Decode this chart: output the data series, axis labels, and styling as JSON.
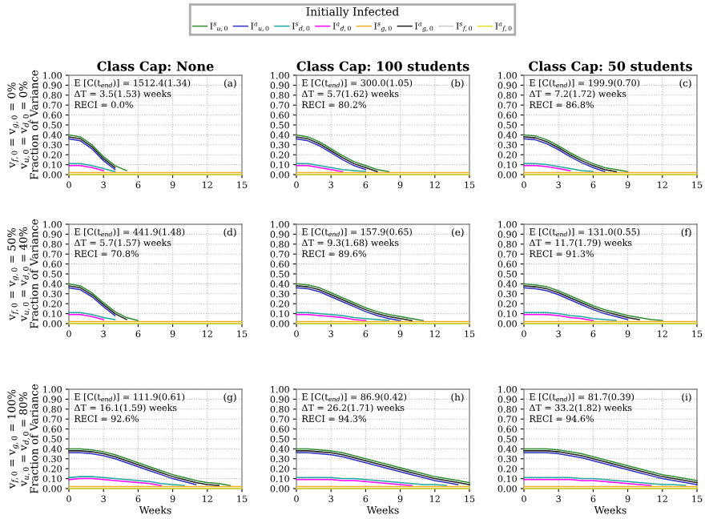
{
  "chart_data": [
    {
      "type": "line",
      "title": "Class Cap: None",
      "ylabel": "v$_{f,0}$ = v$_{g,0}$ = 0%\nv$_{u,0}$ = v$_{d,0}$ = 0%\nFraction of Variance",
      "legend": "top",
      "legend_title": "Initially Infected",
      "grid": true,
      "x": [
        0,
        1,
        2,
        3,
        4,
        5,
        6,
        7,
        8,
        9,
        10,
        11,
        12,
        13,
        14,
        15
      ],
      "xlim": [
        0,
        15
      ],
      "ylim": [
        0,
        1
      ],
      "xticks": [
        0,
        3,
        6,
        9,
        12,
        15
      ],
      "yticks": [
        {
          "value": 0,
          "label": "0.00"
        },
        {
          "value": 0.1,
          "label": "0.10"
        },
        {
          "value": 0.2,
          "label": "0.20"
        },
        {
          "value": 0.3,
          "label": "0.30"
        },
        {
          "value": 0.4,
          "label": "0.40"
        },
        {
          "value": 0.5,
          "label": "0.50"
        },
        {
          "value": 0.6,
          "label": "0.60"
        },
        {
          "value": 0.7,
          "label": "0.70"
        },
        {
          "value": 0.8,
          "label": "0.80"
        },
        {
          "value": 0.9,
          "label": "0.90"
        },
        {
          "value": 1,
          "label": "1.00"
        }
      ],
      "annotations": [
        "E [C(t$_{end}$)] = 1512.4(1.34)",
        "ΔT = 3.5(1.53) weeks",
        "RECI = 0.0%",
        "(a)"
      ],
      "series": [
        {
          "name": "I$^{s}$$_{u,0}$",
          "color": "#2e8b2e",
          "values": [
            0.4,
            0.38,
            0.3,
            0.18,
            0.09,
            0.04,
            null,
            null,
            null,
            null,
            null,
            null,
            null,
            null,
            null,
            null
          ]
        },
        {
          "name": "I$^{a}$$_{u,0}$",
          "color": "#3030c0",
          "values": [
            0.36,
            0.34,
            0.26,
            0.14,
            0.05,
            null,
            null,
            null,
            null,
            null,
            null,
            null,
            null,
            null,
            null,
            null
          ]
        },
        {
          "name": "I$^{s}$$_{d,0}$",
          "color": "#20a8a0",
          "values": [
            0.11,
            0.11,
            0.09,
            0.06,
            0.03,
            null,
            null,
            null,
            null,
            null,
            null,
            null,
            null,
            null,
            null,
            null
          ]
        },
        {
          "name": "I$^{a}$$_{d,0}$",
          "color": "#ff00ff",
          "values": [
            0.09,
            0.09,
            0.07,
            0.04,
            null,
            null,
            null,
            null,
            null,
            null,
            null,
            null,
            null,
            null,
            null,
            null
          ]
        },
        {
          "name": "I$^{s}$$_{g,0}$",
          "color": "#f0b020",
          "values": [
            0.02,
            0.02,
            0.02,
            0.02,
            0.02,
            0.02,
            0.02,
            0.02,
            0.02,
            0.02,
            0.02,
            0.02,
            0.02,
            0.02,
            0.02,
            0.02
          ]
        },
        {
          "name": "I$^{a}$$_{g,0}$",
          "color": "#222222",
          "values": [
            0.38,
            0.36,
            0.28,
            0.16,
            0.07,
            null,
            null,
            null,
            null,
            null,
            null,
            null,
            null,
            null,
            null,
            null
          ]
        },
        {
          "name": "I$^{s}$$_{f,0}$",
          "color": "#cccccc",
          "values": [
            null,
            null,
            null,
            null,
            null,
            null,
            null,
            null,
            null,
            null,
            null,
            null,
            null,
            null,
            null,
            null
          ]
        },
        {
          "name": "I$^{a}$$_{f,0}$",
          "color": "#e0e020",
          "values": [
            0,
            0,
            0,
            0,
            0,
            0,
            0,
            0,
            0,
            0,
            0,
            0,
            0,
            0,
            0,
            0
          ]
        }
      ]
    },
    {
      "type": "line",
      "title": "Class Cap: 100 students",
      "grid": true,
      "x": [
        0,
        1,
        2,
        3,
        4,
        5,
        6,
        7,
        8,
        9,
        10,
        11,
        12,
        13,
        14,
        15
      ],
      "xlim": [
        0,
        15
      ],
      "ylim": [
        0,
        1
      ],
      "xticks": [
        0,
        3,
        6,
        9,
        12,
        15
      ],
      "yticks": [
        {
          "value": 0,
          "label": "0.00"
        },
        {
          "value": 0.1,
          "label": "0.10"
        },
        {
          "value": 0.2,
          "label": "0.20"
        },
        {
          "value": 0.3,
          "label": "0.30"
        },
        {
          "value": 0.4,
          "label": "0.40"
        },
        {
          "value": 0.5,
          "label": "0.50"
        },
        {
          "value": 0.6,
          "label": "0.60"
        },
        {
          "value": 0.7,
          "label": "0.70"
        },
        {
          "value": 0.8,
          "label": "0.80"
        },
        {
          "value": 0.9,
          "label": "0.90"
        },
        {
          "value": 1,
          "label": "1.00"
        }
      ],
      "annotations": [
        "E [C(t$_{end}$)] = 300.0(1.05)",
        "ΔT = 5.7(1.62) weeks",
        "RECI = 80.2%",
        "(b)"
      ],
      "series": [
        {
          "color": "#2e8b2e",
          "values": [
            0.4,
            0.38,
            0.33,
            0.26,
            0.19,
            0.13,
            0.09,
            0.05,
            0.03,
            null,
            null,
            null,
            null,
            null,
            null,
            null
          ]
        },
        {
          "color": "#3030c0",
          "values": [
            0.36,
            0.34,
            0.29,
            0.22,
            0.15,
            0.09,
            0.05,
            null,
            null,
            null,
            null,
            null,
            null,
            null,
            null,
            null
          ]
        },
        {
          "color": "#20a8a0",
          "values": [
            0.11,
            0.11,
            0.09,
            0.07,
            0.05,
            0.04,
            0.03,
            null,
            null,
            null,
            null,
            null,
            null,
            null,
            null,
            null
          ]
        },
        {
          "color": "#ff00ff",
          "values": [
            0.09,
            0.09,
            0.07,
            0.05,
            0.03,
            null,
            null,
            null,
            null,
            null,
            null,
            null,
            null,
            null,
            null,
            null
          ]
        },
        {
          "color": "#f0b020",
          "values": [
            0.02,
            0.02,
            0.02,
            0.02,
            0.02,
            0.02,
            0.02,
            0.02,
            0.02,
            0.02,
            0.02,
            0.02,
            0.02,
            0.02,
            0.02,
            0.02
          ]
        },
        {
          "color": "#222222",
          "values": [
            0.38,
            0.36,
            0.31,
            0.24,
            0.17,
            0.11,
            0.07,
            0.03,
            null,
            null,
            null,
            null,
            null,
            null,
            null,
            null
          ]
        },
        {
          "color": "#cccccc",
          "values": [
            null,
            null,
            null,
            null,
            null,
            null,
            null,
            null,
            null,
            null,
            null,
            null,
            null,
            null,
            null,
            null
          ]
        },
        {
          "color": "#e0e020",
          "values": [
            0,
            0,
            0,
            0,
            0,
            0,
            0,
            0,
            0,
            0,
            0,
            0,
            0,
            0,
            0,
            0
          ]
        }
      ]
    },
    {
      "type": "line",
      "title": "Class Cap: 50 students",
      "grid": true,
      "x": [
        0,
        1,
        2,
        3,
        4,
        5,
        6,
        7,
        8,
        9,
        10,
        11,
        12,
        13,
        14,
        15
      ],
      "xlim": [
        0,
        15
      ],
      "ylim": [
        0,
        1
      ],
      "xticks": [
        0,
        3,
        6,
        9,
        12,
        15
      ],
      "yticks": [
        {
          "value": 0,
          "label": "0.00"
        },
        {
          "value": 0.1,
          "label": "0.10"
        },
        {
          "value": 0.2,
          "label": "0.20"
        },
        {
          "value": 0.3,
          "label": "0.30"
        },
        {
          "value": 0.4,
          "label": "0.40"
        },
        {
          "value": 0.5,
          "label": "0.50"
        },
        {
          "value": 0.6,
          "label": "0.60"
        },
        {
          "value": 0.7,
          "label": "0.70"
        },
        {
          "value": 0.8,
          "label": "0.80"
        },
        {
          "value": 0.9,
          "label": "0.90"
        },
        {
          "value": 1,
          "label": "1.00"
        }
      ],
      "annotations": [
        "E [C(t$_{end}$)] = 199.9(0.70)",
        "ΔT = 7.2(1.72) weeks",
        "RECI = 86.8%",
        "(c)"
      ],
      "series": [
        {
          "color": "#2e8b2e",
          "values": [
            0.4,
            0.39,
            0.35,
            0.29,
            0.22,
            0.16,
            0.11,
            0.07,
            0.05,
            0.03,
            null,
            null,
            null,
            null,
            null,
            null
          ]
        },
        {
          "color": "#3030c0",
          "values": [
            0.36,
            0.35,
            0.31,
            0.25,
            0.18,
            0.12,
            0.07,
            0.03,
            null,
            null,
            null,
            null,
            null,
            null,
            null,
            null
          ]
        },
        {
          "color": "#20a8a0",
          "values": [
            0.11,
            0.11,
            0.1,
            0.08,
            0.06,
            0.04,
            0.03,
            null,
            null,
            null,
            null,
            null,
            null,
            null,
            null,
            null
          ]
        },
        {
          "color": "#ff00ff",
          "values": [
            0.09,
            0.09,
            0.08,
            0.06,
            0.04,
            null,
            null,
            null,
            null,
            null,
            null,
            null,
            null,
            null,
            null,
            null
          ]
        },
        {
          "color": "#f0b020",
          "values": [
            0.02,
            0.02,
            0.02,
            0.02,
            0.02,
            0.02,
            0.02,
            0.02,
            0.02,
            0.02,
            0.02,
            0.02,
            0.02,
            0.02,
            0.02,
            0.02
          ]
        },
        {
          "color": "#222222",
          "values": [
            0.38,
            0.37,
            0.33,
            0.27,
            0.2,
            0.14,
            0.09,
            0.05,
            0.03,
            null,
            null,
            null,
            null,
            null,
            null,
            null
          ]
        },
        {
          "color": "#cccccc",
          "values": [
            null,
            null,
            null,
            null,
            null,
            null,
            null,
            null,
            null,
            null,
            null,
            null,
            null,
            null,
            null,
            null
          ]
        },
        {
          "color": "#e0e020",
          "values": [
            0,
            0,
            0,
            0,
            0,
            0,
            0,
            0,
            0,
            0,
            0,
            0,
            0,
            0,
            0,
            0
          ]
        }
      ]
    },
    {
      "type": "line",
      "ylabel": "v$_{f,0}$ = v$_{g,0}$ = 50%\nv$_{u,0}$ = v$_{d,0}$ = 40%\nFraction of Variance",
      "grid": true,
      "x": [
        0,
        1,
        2,
        3,
        4,
        5,
        6,
        7,
        8,
        9,
        10,
        11,
        12,
        13,
        14,
        15
      ],
      "xlim": [
        0,
        15
      ],
      "ylim": [
        0,
        1
      ],
      "xticks": [
        0,
        3,
        6,
        9,
        12,
        15
      ],
      "yticks": [
        {
          "value": 0,
          "label": "0.00"
        },
        {
          "value": 0.1,
          "label": "0.10"
        },
        {
          "value": 0.2,
          "label": "0.20"
        },
        {
          "value": 0.3,
          "label": "0.30"
        },
        {
          "value": 0.4,
          "label": "0.40"
        },
        {
          "value": 0.5,
          "label": "0.50"
        },
        {
          "value": 0.6,
          "label": "0.60"
        },
        {
          "value": 0.7,
          "label": "0.70"
        },
        {
          "value": 0.8,
          "label": "0.80"
        },
        {
          "value": 0.9,
          "label": "0.90"
        },
        {
          "value": 1,
          "label": "1.00"
        }
      ],
      "annotations": [
        "E [C(t$_{end}$)] = 441.9(1.48)",
        "ΔT = 5.7(1.57) weeks",
        "RECI = 70.8%",
        "(d)"
      ],
      "series": [
        {
          "color": "#2e8b2e",
          "values": [
            0.4,
            0.38,
            0.31,
            0.21,
            0.12,
            0.06,
            0.03,
            null,
            null,
            null,
            null,
            null,
            null,
            null,
            null,
            null
          ]
        },
        {
          "color": "#3030c0",
          "values": [
            0.36,
            0.34,
            0.27,
            0.17,
            0.08,
            null,
            null,
            null,
            null,
            null,
            null,
            null,
            null,
            null,
            null,
            null
          ]
        },
        {
          "color": "#20a8a0",
          "values": [
            0.11,
            0.11,
            0.09,
            0.06,
            0.04,
            null,
            null,
            null,
            null,
            null,
            null,
            null,
            null,
            null,
            null,
            null
          ]
        },
        {
          "color": "#ff00ff",
          "values": [
            0.09,
            0.09,
            0.07,
            0.04,
            null,
            null,
            null,
            null,
            null,
            null,
            null,
            null,
            null,
            null,
            null,
            null
          ]
        },
        {
          "color": "#f0b020",
          "values": [
            0.02,
            0.02,
            0.02,
            0.02,
            0.02,
            0.02,
            0.02,
            0.02,
            0.02,
            0.02,
            0.02,
            0.02,
            0.02,
            0.02,
            0.02,
            0.02
          ]
        },
        {
          "color": "#222222",
          "values": [
            0.38,
            0.36,
            0.29,
            0.19,
            0.1,
            0.04,
            null,
            null,
            null,
            null,
            null,
            null,
            null,
            null,
            null,
            null
          ]
        },
        {
          "color": "#cccccc",
          "values": [
            null,
            null,
            null,
            null,
            null,
            null,
            null,
            null,
            null,
            null,
            null,
            null,
            null,
            null,
            null,
            null
          ]
        },
        {
          "color": "#e0e020",
          "values": [
            0,
            0,
            0,
            0,
            0,
            0,
            0,
            0,
            0,
            0,
            0,
            0,
            0,
            0,
            0,
            0
          ]
        }
      ]
    },
    {
      "type": "line",
      "grid": true,
      "x": [
        0,
        1,
        2,
        3,
        4,
        5,
        6,
        7,
        8,
        9,
        10,
        11,
        12,
        13,
        14,
        15
      ],
      "xlim": [
        0,
        15
      ],
      "ylim": [
        0,
        1
      ],
      "xticks": [
        0,
        3,
        6,
        9,
        12,
        15
      ],
      "yticks": [
        {
          "value": 0,
          "label": "0.00"
        },
        {
          "value": 0.1,
          "label": "0.10"
        },
        {
          "value": 0.2,
          "label": "0.20"
        },
        {
          "value": 0.3,
          "label": "0.30"
        },
        {
          "value": 0.4,
          "label": "0.40"
        },
        {
          "value": 0.5,
          "label": "0.50"
        },
        {
          "value": 0.6,
          "label": "0.60"
        },
        {
          "value": 0.7,
          "label": "0.70"
        },
        {
          "value": 0.8,
          "label": "0.80"
        },
        {
          "value": 0.9,
          "label": "0.90"
        },
        {
          "value": 1,
          "label": "1.00"
        }
      ],
      "annotations": [
        "E [C(t$_{end}$)] = 157.9(0.65)",
        "ΔT = 9.3(1.68) weeks",
        "RECI = 89.6%",
        "(e)"
      ],
      "series": [
        {
          "color": "#2e8b2e",
          "values": [
            0.4,
            0.39,
            0.36,
            0.31,
            0.26,
            0.21,
            0.16,
            0.12,
            0.09,
            0.07,
            0.05,
            0.03,
            null,
            null,
            null,
            null
          ]
        },
        {
          "color": "#3030c0",
          "values": [
            0.36,
            0.35,
            0.32,
            0.27,
            0.22,
            0.17,
            0.12,
            0.08,
            0.05,
            0.03,
            null,
            null,
            null,
            null,
            null,
            null
          ]
        },
        {
          "color": "#20a8a0",
          "values": [
            0.11,
            0.11,
            0.1,
            0.09,
            0.08,
            0.06,
            0.05,
            0.04,
            0.03,
            null,
            null,
            null,
            null,
            null,
            null,
            null
          ]
        },
        {
          "color": "#ff00ff",
          "values": [
            0.09,
            0.09,
            0.08,
            0.07,
            0.06,
            0.04,
            0.03,
            null,
            null,
            null,
            null,
            null,
            null,
            null,
            null,
            null
          ]
        },
        {
          "color": "#f0b020",
          "values": [
            0.02,
            0.02,
            0.02,
            0.02,
            0.02,
            0.02,
            0.02,
            0.02,
            0.02,
            0.02,
            0.02,
            0.02,
            0.02,
            0.02,
            0.02,
            0.02
          ]
        },
        {
          "color": "#222222",
          "values": [
            0.38,
            0.37,
            0.34,
            0.29,
            0.24,
            0.19,
            0.14,
            0.1,
            0.07,
            0.05,
            0.03,
            null,
            null,
            null,
            null,
            null
          ]
        },
        {
          "color": "#cccccc",
          "values": [
            null,
            null,
            null,
            null,
            null,
            null,
            null,
            null,
            null,
            null,
            null,
            null,
            null,
            null,
            null,
            null
          ]
        },
        {
          "color": "#e0e020",
          "values": [
            0,
            0,
            0,
            0,
            0,
            0,
            0,
            0,
            0,
            0,
            0,
            0,
            0,
            0,
            0,
            0
          ]
        }
      ]
    },
    {
      "type": "line",
      "grid": true,
      "x": [
        0,
        1,
        2,
        3,
        4,
        5,
        6,
        7,
        8,
        9,
        10,
        11,
        12,
        13,
        14,
        15
      ],
      "xlim": [
        0,
        15
      ],
      "ylim": [
        0,
        1
      ],
      "xticks": [
        0,
        3,
        6,
        9,
        12,
        15
      ],
      "yticks": [
        {
          "value": 0,
          "label": "0.00"
        },
        {
          "value": 0.1,
          "label": "0.10"
        },
        {
          "value": 0.2,
          "label": "0.20"
        },
        {
          "value": 0.3,
          "label": "0.30"
        },
        {
          "value": 0.4,
          "label": "0.40"
        },
        {
          "value": 0.5,
          "label": "0.50"
        },
        {
          "value": 0.6,
          "label": "0.60"
        },
        {
          "value": 0.7,
          "label": "0.70"
        },
        {
          "value": 0.8,
          "label": "0.80"
        },
        {
          "value": 0.9,
          "label": "0.90"
        },
        {
          "value": 1,
          "label": "1.00"
        }
      ],
      "annotations": [
        "E [C(t$_{end}$)] = 131.0(0.55)",
        "ΔT = 11.7(1.79) weeks",
        "RECI = 91.3%",
        "(f)"
      ],
      "series": [
        {
          "color": "#2e8b2e",
          "values": [
            0.4,
            0.39,
            0.37,
            0.33,
            0.28,
            0.23,
            0.18,
            0.14,
            0.11,
            0.08,
            0.06,
            0.04,
            0.03,
            null,
            null,
            null
          ]
        },
        {
          "color": "#3030c0",
          "values": [
            0.36,
            0.35,
            0.33,
            0.29,
            0.24,
            0.19,
            0.14,
            0.1,
            0.07,
            0.04,
            null,
            null,
            null,
            null,
            null,
            null
          ]
        },
        {
          "color": "#20a8a0",
          "values": [
            0.11,
            0.11,
            0.11,
            0.1,
            0.08,
            0.07,
            0.05,
            0.04,
            0.03,
            null,
            null,
            null,
            null,
            null,
            null,
            null
          ]
        },
        {
          "color": "#ff00ff",
          "values": [
            0.09,
            0.09,
            0.09,
            0.08,
            0.06,
            0.05,
            0.03,
            null,
            null,
            null,
            null,
            null,
            null,
            null,
            null,
            null
          ]
        },
        {
          "color": "#f0b020",
          "values": [
            0.02,
            0.02,
            0.02,
            0.02,
            0.02,
            0.02,
            0.02,
            0.02,
            0.02,
            0.02,
            0.02,
            0.02,
            0.02,
            0.02,
            0.02,
            0.02
          ]
        },
        {
          "color": "#222222",
          "values": [
            0.38,
            0.37,
            0.35,
            0.31,
            0.26,
            0.21,
            0.16,
            0.12,
            0.09,
            0.06,
            0.04,
            null,
            null,
            null,
            null,
            null
          ]
        },
        {
          "color": "#cccccc",
          "values": [
            null,
            null,
            null,
            null,
            null,
            null,
            null,
            null,
            null,
            null,
            null,
            null,
            null,
            null,
            null,
            null
          ]
        },
        {
          "color": "#e0e020",
          "values": [
            0,
            0,
            0,
            0,
            0,
            0,
            0,
            0,
            0,
            0,
            0,
            0,
            0,
            0,
            0,
            0
          ]
        }
      ]
    },
    {
      "type": "line",
      "xlabel": "Weeks",
      "ylabel": "v$_{f,0}$ = v$_{g,0}$ = 100%\nv$_{u,0}$ = v$_{d,0}$ = 80%\nFraction of Variance",
      "grid": true,
      "x": [
        0,
        1,
        2,
        3,
        4,
        5,
        6,
        7,
        8,
        9,
        10,
        11,
        12,
        13,
        14,
        15
      ],
      "xlim": [
        0,
        15
      ],
      "ylim": [
        0,
        1
      ],
      "xticks": [
        0,
        3,
        6,
        9,
        12,
        15
      ],
      "yticks": [
        {
          "value": 0,
          "label": "0.00"
        },
        {
          "value": 0.1,
          "label": "0.10"
        },
        {
          "value": 0.2,
          "label": "0.20"
        },
        {
          "value": 0.3,
          "label": "0.30"
        },
        {
          "value": 0.4,
          "label": "0.40"
        },
        {
          "value": 0.5,
          "label": "0.50"
        },
        {
          "value": 0.6,
          "label": "0.60"
        },
        {
          "value": 0.7,
          "label": "0.70"
        },
        {
          "value": 0.8,
          "label": "0.80"
        },
        {
          "value": 0.9,
          "label": "0.90"
        },
        {
          "value": 1,
          "label": "1.00"
        }
      ],
      "annotations": [
        "E [C(t$_{end}$)] = 111.9(0.61)",
        "ΔT = 16.1(1.59) weeks",
        "RECI = 92.6%",
        "(g)"
      ],
      "series": [
        {
          "color": "#2e8b2e",
          "values": [
            0.4,
            0.4,
            0.39,
            0.37,
            0.34,
            0.3,
            0.26,
            0.22,
            0.18,
            0.14,
            0.11,
            0.08,
            0.06,
            0.05,
            0.03,
            null
          ]
        },
        {
          "color": "#3030c0",
          "values": [
            0.36,
            0.36,
            0.35,
            0.33,
            0.3,
            0.26,
            0.22,
            0.18,
            0.14,
            0.1,
            0.07,
            0.04,
            null,
            null,
            null,
            null
          ]
        },
        {
          "color": "#20a8a0",
          "values": [
            0.11,
            0.12,
            0.12,
            0.11,
            0.1,
            0.09,
            0.08,
            0.07,
            0.05,
            0.04,
            0.03,
            null,
            null,
            null,
            null,
            null
          ]
        },
        {
          "color": "#ff00ff",
          "values": [
            0.09,
            0.1,
            0.1,
            0.09,
            0.08,
            0.07,
            0.06,
            0.05,
            0.03,
            null,
            null,
            null,
            null,
            null,
            null,
            null
          ]
        },
        {
          "color": "#f0b020",
          "values": [
            0.02,
            0.02,
            0.02,
            0.02,
            0.02,
            0.02,
            0.02,
            0.02,
            0.02,
            0.02,
            0.02,
            0.02,
            0.02,
            0.02,
            0.02,
            0.02
          ]
        },
        {
          "color": "#222222",
          "values": [
            0.38,
            0.38,
            0.37,
            0.35,
            0.32,
            0.28,
            0.24,
            0.2,
            0.16,
            0.12,
            0.09,
            0.06,
            0.04,
            0.03,
            null,
            null
          ]
        },
        {
          "color": "#cccccc",
          "values": [
            null,
            null,
            null,
            null,
            null,
            null,
            null,
            null,
            null,
            null,
            null,
            null,
            null,
            null,
            null,
            null
          ]
        },
        {
          "color": "#e0e020",
          "values": [
            0,
            0,
            0,
            0,
            0,
            0,
            0,
            0,
            0,
            0,
            0,
            0,
            0,
            0,
            0,
            0
          ]
        }
      ]
    },
    {
      "type": "line",
      "xlabel": "Weeks",
      "grid": true,
      "x": [
        0,
        1,
        2,
        3,
        4,
        5,
        6,
        7,
        8,
        9,
        10,
        11,
        12,
        13,
        14,
        15
      ],
      "xlim": [
        0,
        15
      ],
      "ylim": [
        0,
        1
      ],
      "xticks": [
        0,
        3,
        6,
        9,
        12,
        15
      ],
      "yticks": [
        {
          "value": 0,
          "label": "0.00"
        },
        {
          "value": 0.1,
          "label": "0.10"
        },
        {
          "value": 0.2,
          "label": "0.20"
        },
        {
          "value": 0.3,
          "label": "0.30"
        },
        {
          "value": 0.4,
          "label": "0.40"
        },
        {
          "value": 0.5,
          "label": "0.50"
        },
        {
          "value": 0.6,
          "label": "0.60"
        },
        {
          "value": 0.7,
          "label": "0.70"
        },
        {
          "value": 0.8,
          "label": "0.80"
        },
        {
          "value": 0.9,
          "label": "0.90"
        },
        {
          "value": 1,
          "label": "1.00"
        }
      ],
      "annotations": [
        "E [C(t$_{end}$)] = 86.9(0.42)",
        "ΔT = 26.2(1.71) weeks",
        "RECI = 94.3%",
        "(h)"
      ],
      "series": [
        {
          "color": "#2e8b2e",
          "values": [
            0.4,
            0.4,
            0.39,
            0.38,
            0.36,
            0.33,
            0.3,
            0.27,
            0.24,
            0.21,
            0.18,
            0.15,
            0.12,
            0.1,
            0.08,
            0.06
          ]
        },
        {
          "color": "#3030c0",
          "values": [
            0.36,
            0.36,
            0.35,
            0.34,
            0.32,
            0.29,
            0.26,
            0.23,
            0.2,
            0.17,
            0.14,
            0.11,
            0.08,
            0.06,
            0.04,
            null
          ]
        },
        {
          "color": "#20a8a0",
          "values": [
            0.11,
            0.11,
            0.11,
            0.11,
            0.1,
            0.1,
            0.09,
            0.08,
            0.07,
            0.06,
            0.05,
            0.04,
            0.04,
            0.03,
            null,
            null
          ]
        },
        {
          "color": "#ff00ff",
          "values": [
            0.09,
            0.09,
            0.09,
            0.09,
            0.08,
            0.08,
            0.07,
            0.06,
            0.05,
            0.04,
            0.03,
            null,
            null,
            null,
            null,
            null
          ]
        },
        {
          "color": "#f0b020",
          "values": [
            0.02,
            0.02,
            0.02,
            0.02,
            0.02,
            0.02,
            0.02,
            0.02,
            0.02,
            0.02,
            0.02,
            0.02,
            0.02,
            0.02,
            0.02,
            0.02
          ]
        },
        {
          "color": "#222222",
          "values": [
            0.38,
            0.38,
            0.37,
            0.36,
            0.34,
            0.31,
            0.28,
            0.25,
            0.22,
            0.19,
            0.16,
            0.13,
            0.1,
            0.08,
            0.06,
            0.04
          ]
        },
        {
          "color": "#cccccc",
          "values": [
            null,
            null,
            null,
            null,
            null,
            null,
            null,
            null,
            null,
            null,
            null,
            null,
            null,
            null,
            null,
            null
          ]
        },
        {
          "color": "#e0e020",
          "values": [
            0,
            0,
            0,
            0,
            0,
            0,
            0,
            0,
            0,
            0,
            0,
            0,
            0,
            0,
            0,
            0
          ]
        }
      ]
    },
    {
      "type": "line",
      "xlabel": "Weeks",
      "grid": true,
      "x": [
        0,
        1,
        2,
        3,
        4,
        5,
        6,
        7,
        8,
        9,
        10,
        11,
        12,
        13,
        14,
        15
      ],
      "xlim": [
        0,
        15
      ],
      "ylim": [
        0,
        1
      ],
      "xticks": [
        0,
        3,
        6,
        9,
        12,
        15
      ],
      "yticks": [
        {
          "value": 0,
          "label": "0.00"
        },
        {
          "value": 0.1,
          "label": "0.10"
        },
        {
          "value": 0.2,
          "label": "0.20"
        },
        {
          "value": 0.3,
          "label": "0.30"
        },
        {
          "value": 0.4,
          "label": "0.40"
        },
        {
          "value": 0.5,
          "label": "0.50"
        },
        {
          "value": 0.6,
          "label": "0.60"
        },
        {
          "value": 0.7,
          "label": "0.70"
        },
        {
          "value": 0.8,
          "label": "0.80"
        },
        {
          "value": 0.9,
          "label": "0.90"
        },
        {
          "value": 1,
          "label": "1.00"
        }
      ],
      "annotations": [
        "E [C(t$_{end}$)] = 81.7(0.39)",
        "ΔT = 33.2(1.82) weeks",
        "RECI = 94.6%",
        "(i)"
      ],
      "series": [
        {
          "color": "#2e8b2e",
          "values": [
            0.4,
            0.4,
            0.4,
            0.39,
            0.37,
            0.35,
            0.32,
            0.29,
            0.26,
            0.23,
            0.2,
            0.17,
            0.14,
            0.12,
            0.1,
            0.08
          ]
        },
        {
          "color": "#3030c0",
          "values": [
            0.36,
            0.36,
            0.36,
            0.35,
            0.33,
            0.31,
            0.28,
            0.25,
            0.22,
            0.19,
            0.16,
            0.13,
            0.1,
            0.08,
            0.06,
            0.04
          ]
        },
        {
          "color": "#20a8a0",
          "values": [
            0.11,
            0.11,
            0.11,
            0.11,
            0.11,
            0.1,
            0.1,
            0.09,
            0.08,
            0.07,
            0.06,
            0.05,
            0.04,
            0.04,
            0.03,
            null
          ]
        },
        {
          "color": "#ff00ff",
          "values": [
            0.09,
            0.09,
            0.09,
            0.09,
            0.09,
            0.08,
            0.08,
            0.07,
            0.06,
            0.05,
            0.04,
            0.03,
            null,
            null,
            null,
            null
          ]
        },
        {
          "color": "#f0b020",
          "values": [
            0.02,
            0.02,
            0.02,
            0.02,
            0.02,
            0.02,
            0.02,
            0.02,
            0.02,
            0.02,
            0.02,
            0.02,
            0.02,
            0.02,
            0.02,
            0.02
          ]
        },
        {
          "color": "#222222",
          "values": [
            0.38,
            0.38,
            0.38,
            0.37,
            0.35,
            0.33,
            0.3,
            0.27,
            0.24,
            0.21,
            0.18,
            0.15,
            0.12,
            0.1,
            0.08,
            0.06
          ]
        },
        {
          "color": "#cccccc",
          "values": [
            null,
            null,
            null,
            null,
            null,
            null,
            null,
            null,
            null,
            null,
            null,
            null,
            null,
            null,
            null,
            null
          ]
        },
        {
          "color": "#e0e020",
          "values": [
            0,
            0,
            0,
            0,
            0,
            0,
            0,
            0,
            0,
            0,
            0,
            0,
            0,
            0,
            0,
            0
          ]
        }
      ]
    }
  ]
}
